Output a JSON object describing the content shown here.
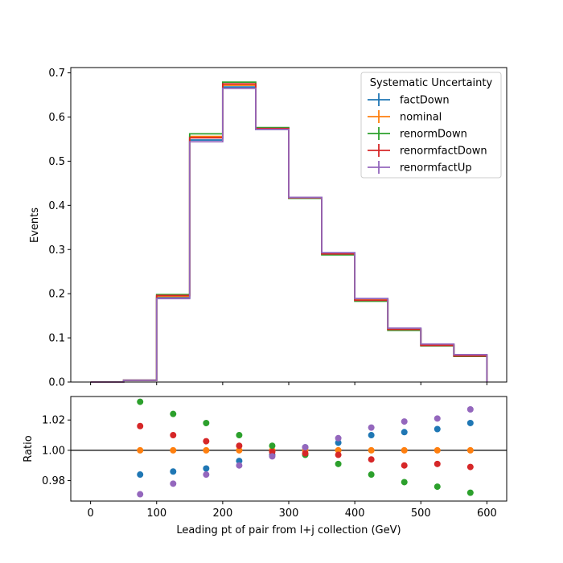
{
  "chart_data": [
    {
      "type": "line",
      "drawstyle": "step",
      "ylabel": "Events",
      "xlim": [
        -30,
        630
      ],
      "ylim": [
        0,
        0.712
      ],
      "yticks": [
        0.0,
        0.1,
        0.2,
        0.3,
        0.4,
        0.5,
        0.6,
        0.7
      ],
      "ytick_labels": [
        "0.0",
        "0.1",
        "0.2",
        "0.3",
        "0.4",
        "0.5",
        "0.6",
        "0.7"
      ],
      "bin_edges": [
        0,
        50,
        100,
        150,
        200,
        250,
        300,
        350,
        400,
        450,
        500,
        550,
        600
      ],
      "legend": {
        "title": "Systematic Uncertainty",
        "loc": "upper right"
      },
      "series": [
        {
          "name": "factDown",
          "color": "#1f77b4",
          "values": [
            0.0,
            0.004,
            0.191,
            0.548,
            0.668,
            0.572,
            0.418,
            0.292,
            0.188,
            0.121,
            0.085,
            0.061
          ]
        },
        {
          "name": "nominal",
          "color": "#ff7f0e",
          "values": [
            0.0,
            0.004,
            0.194,
            0.556,
            0.672,
            0.574,
            0.417,
            0.291,
            0.186,
            0.12,
            0.084,
            0.06
          ]
        },
        {
          "name": "renormDown",
          "color": "#2ca02c",
          "values": [
            0.0,
            0.004,
            0.198,
            0.562,
            0.679,
            0.576,
            0.416,
            0.288,
            0.183,
            0.117,
            0.082,
            0.058
          ]
        },
        {
          "name": "renormfactDown",
          "color": "#d62728",
          "values": [
            0.0,
            0.004,
            0.196,
            0.553,
            0.675,
            0.574,
            0.417,
            0.29,
            0.185,
            0.119,
            0.083,
            0.059
          ]
        },
        {
          "name": "renormfactUp",
          "color": "#9467bd",
          "values": [
            0.0,
            0.004,
            0.189,
            0.544,
            0.665,
            0.572,
            0.418,
            0.293,
            0.189,
            0.122,
            0.086,
            0.062
          ]
        }
      ]
    },
    {
      "type": "scatter",
      "ylabel": "Ratio",
      "xlabel": "Leading pt of pair from l+j collection (GeV)",
      "xlim": [
        -30,
        630
      ],
      "ylim": [
        0.9665,
        1.0355
      ],
      "xticks": [
        0,
        100,
        200,
        300,
        400,
        500,
        600
      ],
      "xtick_labels": [
        "0",
        "100",
        "200",
        "300",
        "400",
        "500",
        "600"
      ],
      "yticks": [
        0.98,
        1.0,
        1.02
      ],
      "ytick_labels": [
        "0.98",
        "1.00",
        "1.02"
      ],
      "reference_line": 1.0,
      "x": [
        75,
        125,
        175,
        225,
        275,
        325,
        375,
        425,
        475,
        525,
        575
      ],
      "series": [
        {
          "name": "factDown",
          "color": "#1f77b4",
          "values": [
            0.984,
            0.986,
            0.988,
            0.993,
            0.997,
            1.002,
            1.005,
            1.01,
            1.012,
            1.014,
            1.018
          ]
        },
        {
          "name": "nominal",
          "color": "#ff7f0e",
          "values": [
            1.0,
            1.0,
            1.0,
            1.0,
            1.0,
            1.0,
            1.0,
            1.0,
            1.0,
            1.0,
            1.0
          ]
        },
        {
          "name": "renormDown",
          "color": "#2ca02c",
          "values": [
            1.032,
            1.024,
            1.018,
            1.01,
            1.003,
            0.997,
            0.991,
            0.984,
            0.979,
            0.976,
            0.972
          ]
        },
        {
          "name": "renormfactDown",
          "color": "#d62728",
          "values": [
            1.016,
            1.01,
            1.006,
            1.003,
            0.999,
            0.998,
            0.997,
            0.994,
            0.99,
            0.991,
            0.989
          ]
        },
        {
          "name": "renormfactUp",
          "color": "#9467bd",
          "values": [
            0.971,
            0.978,
            0.984,
            0.99,
            0.996,
            1.002,
            1.008,
            1.015,
            1.019,
            1.021,
            1.027
          ]
        }
      ]
    }
  ]
}
